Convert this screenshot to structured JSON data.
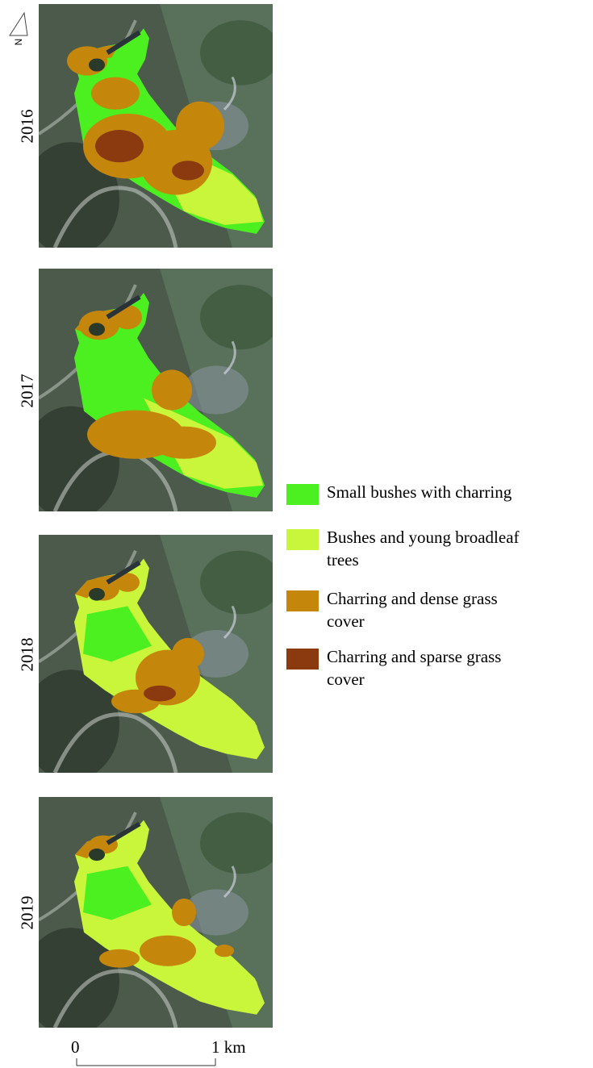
{
  "north": "N",
  "panels": [
    {
      "year": "2016"
    },
    {
      "year": "2017"
    },
    {
      "year": "2018"
    },
    {
      "year": "2019"
    }
  ],
  "legend": [
    {
      "label": "Small bushes with charring",
      "color": "#4cf021"
    },
    {
      "label": "Bushes and young broadleaf trees",
      "color": "#c9f53a"
    },
    {
      "label": "Charring and dense grass cover",
      "color": "#c4870c"
    },
    {
      "label": "Charring and sparse grass cover",
      "color": "#8a3a0e"
    }
  ],
  "scale": {
    "start": "0",
    "end": "1 km"
  }
}
